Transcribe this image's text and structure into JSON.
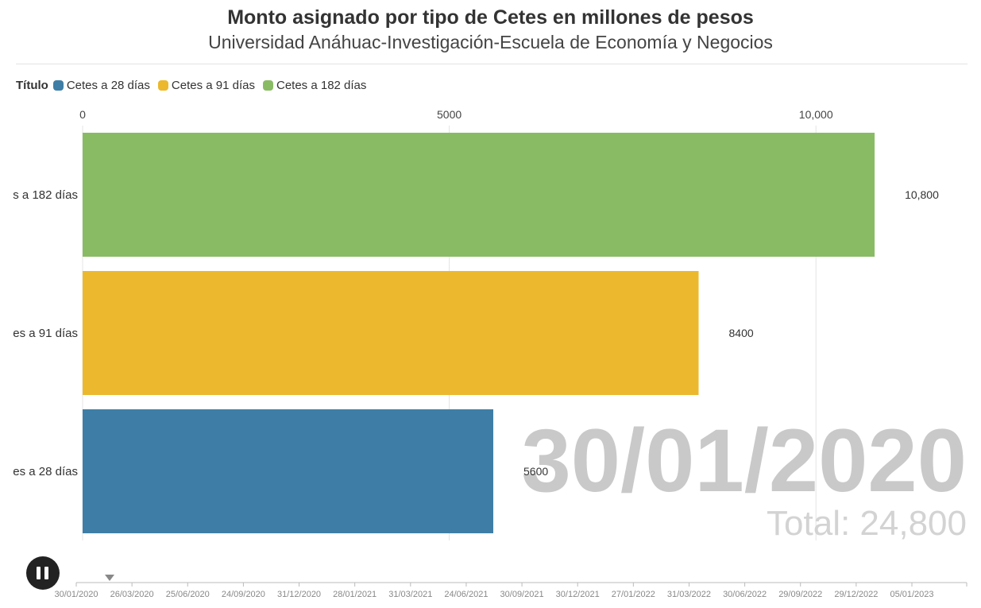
{
  "header": {
    "title": "Monto asignado por tipo de Cetes en millones de pesos",
    "subtitle": "Universidad Anáhuac-Investigación-Escuela de Economía y Negocios"
  },
  "legend": {
    "title": "Título",
    "items": [
      {
        "label": "Cetes a 28 días",
        "color": "#3e7ea6"
      },
      {
        "label": "Cetes a 91 días",
        "color": "#ecb82d"
      },
      {
        "label": "Cetes a 182 días",
        "color": "#89bb65"
      }
    ]
  },
  "chart_data": {
    "type": "bar",
    "orientation": "horizontal",
    "title": "Monto asignado por tipo de Cetes en millones de pesos",
    "xlim": [
      0,
      11200
    ],
    "x_ticks": [
      {
        "value": 0,
        "label": "0"
      },
      {
        "value": 5000,
        "label": "5000"
      },
      {
        "value": 10000,
        "label": "10,000"
      }
    ],
    "bars": [
      {
        "category_visible": "s a 182 días",
        "value": 10800,
        "value_label": "10,800",
        "color": "#89bb65"
      },
      {
        "category_visible": "es a 91 días",
        "value": 8400,
        "value_label": "8400",
        "color": "#ecb82d"
      },
      {
        "category_visible": "es a 28 días",
        "value": 5600,
        "value_label": "5600",
        "color": "#3e7ea6"
      }
    ],
    "current_date": "30/01/2020",
    "total_label": "Total: 24,800"
  },
  "timeline": {
    "current_index": 0,
    "dates": [
      "30/01/2020",
      "26/03/2020",
      "25/06/2020",
      "24/09/2020",
      "31/12/2020",
      "28/01/2021",
      "31/03/2021",
      "24/06/2021",
      "30/09/2021",
      "30/12/2021",
      "27/01/2022",
      "31/03/2022",
      "30/06/2022",
      "29/09/2022",
      "29/12/2022",
      "05/01/2023"
    ]
  }
}
